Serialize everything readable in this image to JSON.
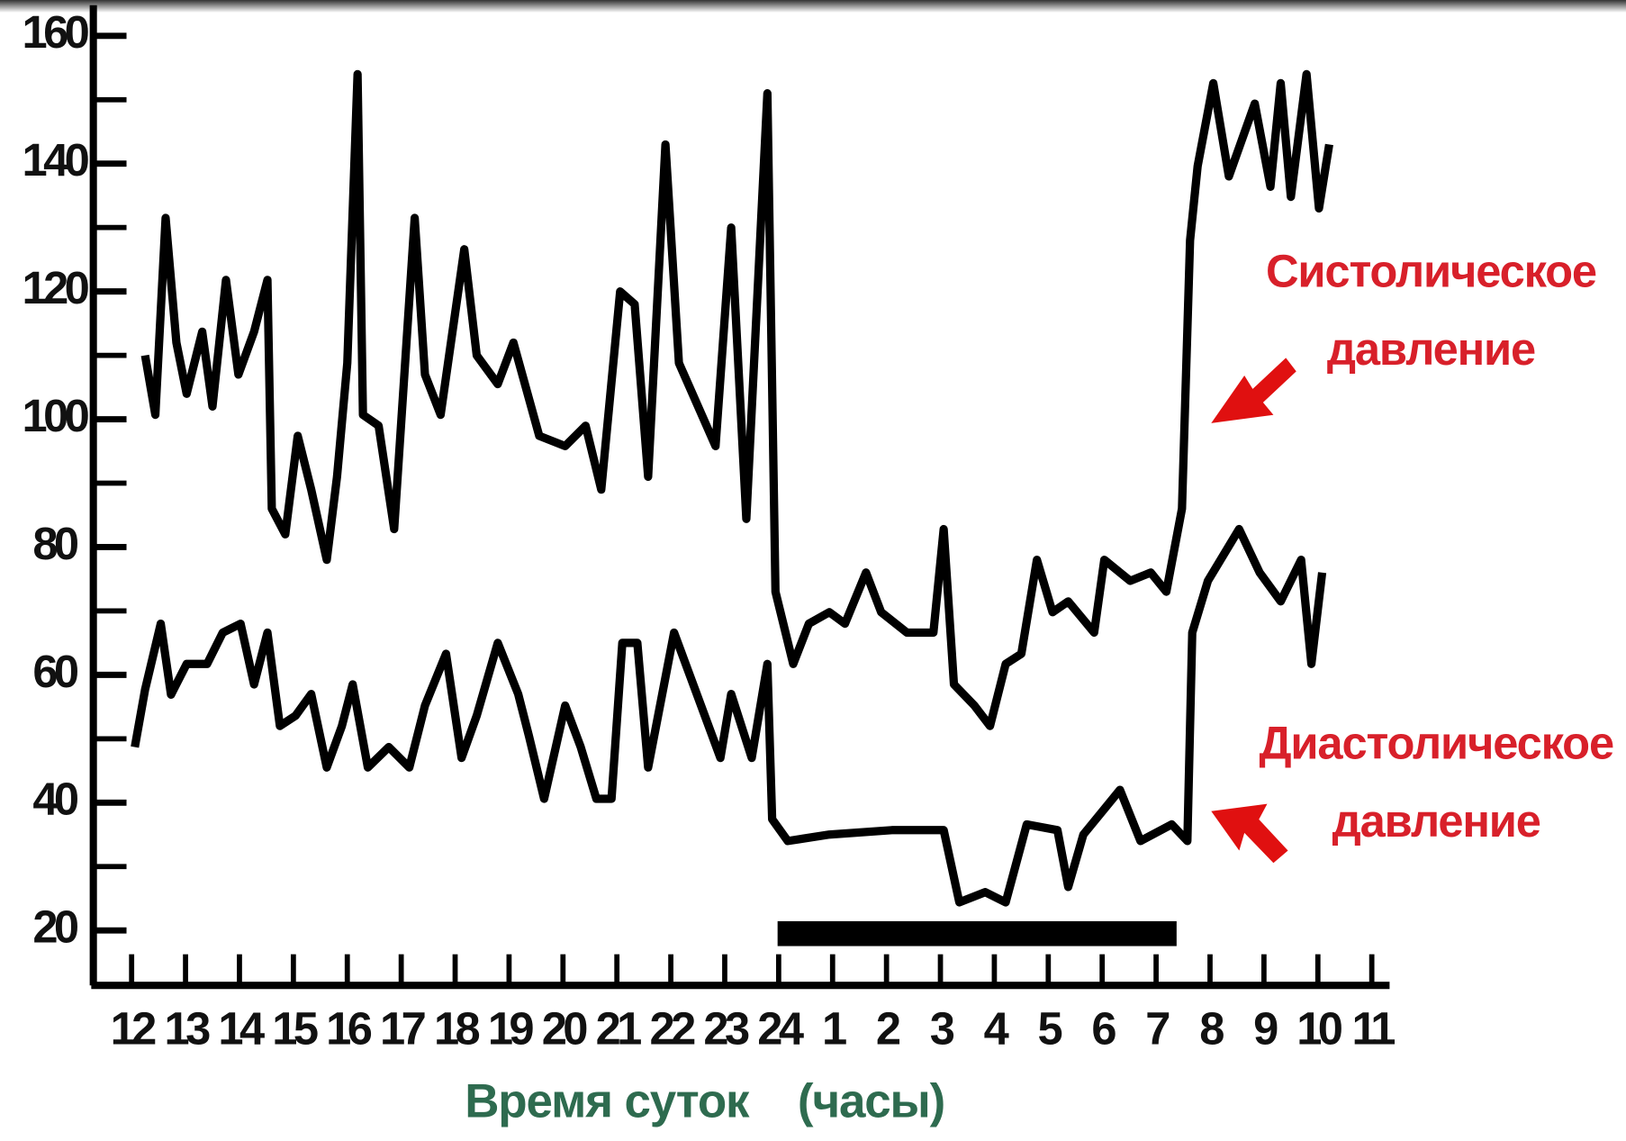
{
  "chart_data": {
    "type": "line",
    "xlim": [
      -0.71,
      23.33
    ],
    "ylim": [
      11.4,
      164.8
    ],
    "yticks": [
      20,
      40,
      60,
      80,
      100,
      120,
      140,
      160
    ],
    "yticks_minor": [
      30,
      50,
      70,
      90,
      110,
      130,
      150
    ],
    "xticks": [
      {
        "value": 0,
        "label": "12"
      },
      {
        "value": 1,
        "label": "13"
      },
      {
        "value": 2,
        "label": "14"
      },
      {
        "value": 3,
        "label": "15"
      },
      {
        "value": 4,
        "label": "16"
      },
      {
        "value": 5,
        "label": "17"
      },
      {
        "value": 6,
        "label": "18"
      },
      {
        "value": 7,
        "label": "19"
      },
      {
        "value": 8,
        "label": "20"
      },
      {
        "value": 9,
        "label": "21"
      },
      {
        "value": 10,
        "label": "22"
      },
      {
        "value": 11,
        "label": "23"
      },
      {
        "value": 12,
        "label": "24"
      },
      {
        "value": 13,
        "label": "1"
      },
      {
        "value": 14,
        "label": "2"
      },
      {
        "value": 15,
        "label": "3"
      },
      {
        "value": 16,
        "label": "4"
      },
      {
        "value": 17,
        "label": "5"
      },
      {
        "value": 18,
        "label": "6"
      },
      {
        "value": 19,
        "label": "7"
      },
      {
        "value": 20,
        "label": "8"
      },
      {
        "value": 21,
        "label": "9"
      },
      {
        "value": 22,
        "label": "10"
      },
      {
        "value": 23,
        "label": "11"
      }
    ],
    "xlabel": "Время суток",
    "xlabel_unit": "(часы)",
    "series": [
      {
        "color": "#000000",
        "x": [
          0.25,
          0.44,
          0.63,
          0.83,
          1.02,
          1.31,
          1.5,
          1.75,
          1.98,
          2.27,
          2.52,
          2.6,
          2.85,
          3.08,
          3.33,
          3.62,
          3.81,
          4.0,
          4.19,
          4.29,
          4.58,
          4.87,
          5.25,
          5.44,
          5.73,
          6.17,
          6.4,
          6.79,
          7.08,
          7.56,
          8.04,
          8.42,
          8.71,
          9.06,
          9.33,
          9.58,
          9.9,
          10.15,
          10.83,
          11.12,
          11.4,
          11.79,
          11.94,
          12.27,
          12.56,
          12.94,
          13.23,
          13.62,
          13.9,
          14.38,
          14.87,
          15.06,
          15.25,
          15.63,
          15.92,
          16.21,
          16.5,
          16.79,
          17.08,
          17.37,
          17.85,
          18.04,
          18.52,
          18.9,
          19.19,
          19.48,
          19.63,
          19.77,
          20.06,
          20.35,
          20.83,
          21.12,
          21.31,
          21.5,
          21.79,
          22.02,
          22.21
        ],
        "values": [
          110,
          100.7,
          131.5,
          112,
          104,
          113.7,
          102,
          121.8,
          107,
          113.7,
          121.8,
          86,
          82,
          97.4,
          89,
          78,
          91,
          108.8,
          154,
          100.7,
          99,
          82.8,
          131.5,
          107,
          100.7,
          126.6,
          110,
          105.5,
          112,
          97.4,
          95.8,
          99,
          89,
          120,
          118,
          91,
          143,
          108.8,
          95.8,
          130,
          84.4,
          151,
          73,
          61.7,
          68,
          69.8,
          68,
          76,
          69.8,
          66.6,
          66.6,
          82.8,
          58.5,
          55.2,
          52,
          61.7,
          63.3,
          78,
          69.8,
          71.5,
          66.6,
          78,
          74.7,
          76,
          73,
          86,
          128,
          139.6,
          152.6,
          138,
          149.4,
          136.4,
          152.6,
          134.8,
          154,
          133,
          143
        ]
      },
      {
        "color": "#000000",
        "x": [
          0.06,
          0.25,
          0.54,
          0.73,
          1.02,
          1.4,
          1.69,
          2.02,
          2.27,
          2.52,
          2.75,
          3.04,
          3.33,
          3.62,
          3.9,
          4.1,
          4.38,
          4.77,
          5.15,
          5.44,
          5.83,
          6.12,
          6.4,
          6.79,
          7.17,
          7.37,
          7.65,
          8.04,
          8.33,
          8.62,
          8.9,
          9.1,
          9.38,
          9.58,
          10.06,
          10.92,
          11.12,
          11.5,
          11.79,
          11.88,
          12.17,
          12.94,
          14.1,
          15.06,
          15.35,
          15.83,
          16.21,
          16.6,
          17.17,
          17.37,
          17.65,
          18.33,
          18.71,
          19.29,
          19.58,
          19.67,
          19.96,
          20.54,
          20.92,
          21.31,
          21.69,
          21.88,
          22.08
        ],
        "values": [
          48.7,
          57.7,
          68,
          56.9,
          61.7,
          61.7,
          66.6,
          68,
          58.5,
          66.6,
          52,
          53.6,
          57,
          45.5,
          52,
          58.5,
          45.5,
          48.7,
          45.5,
          55.2,
          63.3,
          47,
          53.6,
          65,
          57,
          50.4,
          40.6,
          55.2,
          48.7,
          40.6,
          40.6,
          65,
          65,
          45.5,
          66.6,
          47,
          57,
          47,
          61.7,
          37.4,
          34,
          35,
          35.7,
          35.7,
          24.4,
          26,
          24.4,
          36.6,
          35.7,
          26.8,
          35,
          42,
          34,
          36.6,
          34,
          66.6,
          74.7,
          82.8,
          76,
          71.5,
          78,
          61.7,
          76
        ]
      }
    ],
    "highlight": {
      "x": [
        11.98,
        19.38
      ],
      "y": 19.5
    },
    "annotations": [
      {
        "lines": [
          "Систолическое",
          "давление"
        ],
        "color": "#d8202a"
      },
      {
        "lines": [
          "Диастолическое",
          "давление"
        ],
        "color": "#d8202a"
      }
    ]
  }
}
